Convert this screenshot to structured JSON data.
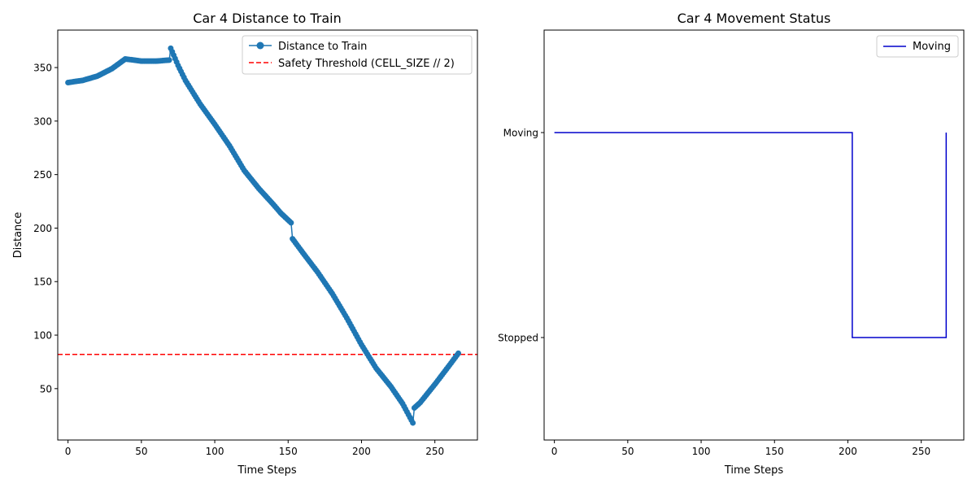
{
  "chart_data": [
    {
      "type": "line",
      "title": "Car 4 Distance to Train",
      "xlabel": "Time Steps",
      "ylabel": "Distance",
      "xlim": [
        -7,
        279
      ],
      "ylim": [
        2,
        385
      ],
      "xticks": [
        0,
        50,
        100,
        150,
        200,
        250
      ],
      "yticks": [
        50,
        100,
        150,
        200,
        250,
        300,
        350
      ],
      "grid": false,
      "legend_position": "upper right",
      "series": [
        {
          "name": "Distance to Train",
          "color": "#1f77b4",
          "marker": "circle",
          "keypoints": [
            [
              0,
              336
            ],
            [
              10,
              338
            ],
            [
              20,
              342
            ],
            [
              30,
              349
            ],
            [
              39,
              358
            ],
            [
              45,
              357
            ],
            [
              50,
              356
            ],
            [
              60,
              356
            ],
            [
              69,
              357
            ],
            [
              70,
              368
            ],
            [
              75,
              352
            ],
            [
              80,
              338
            ],
            [
              90,
              316
            ],
            [
              100,
              297
            ],
            [
              110,
              277
            ],
            [
              120,
              254
            ],
            [
              130,
              237
            ],
            [
              140,
              222
            ],
            [
              145,
              214
            ],
            [
              152,
              205
            ],
            [
              153,
              190
            ],
            [
              160,
              177
            ],
            [
              170,
              159
            ],
            [
              180,
              139
            ],
            [
              190,
              116
            ],
            [
              200,
              91
            ],
            [
              205,
              80
            ],
            [
              210,
              69
            ],
            [
              220,
              52
            ],
            [
              228,
              36
            ],
            [
              235,
              18
            ],
            [
              236,
              32
            ],
            [
              240,
              37
            ],
            [
              250,
              54
            ],
            [
              260,
              72
            ],
            [
              266,
              83
            ]
          ]
        }
      ],
      "reference_lines": [
        {
          "name": "Safety Threshold (CELL_SIZE // 2)",
          "y": 82,
          "color": "#ff0000",
          "style": "dashed"
        }
      ]
    },
    {
      "type": "line",
      "title": "Car 4 Movement Status",
      "xlabel": "Time Steps",
      "ylabel": "",
      "xlim": [
        -7,
        279
      ],
      "ylim": [
        -0.5,
        1.5
      ],
      "xticks": [
        0,
        50,
        100,
        150,
        200,
        250
      ],
      "yticks": [
        0,
        1
      ],
      "ytick_labels": [
        "Stopped",
        "Moving"
      ],
      "grid": false,
      "legend_position": "upper right",
      "series": [
        {
          "name": "Moving",
          "color": "#0000cc",
          "step": true,
          "points": [
            [
              0,
              1
            ],
            [
              203,
              1
            ],
            [
              203,
              0
            ],
            [
              267,
              0
            ],
            [
              267,
              1
            ]
          ]
        }
      ]
    }
  ]
}
